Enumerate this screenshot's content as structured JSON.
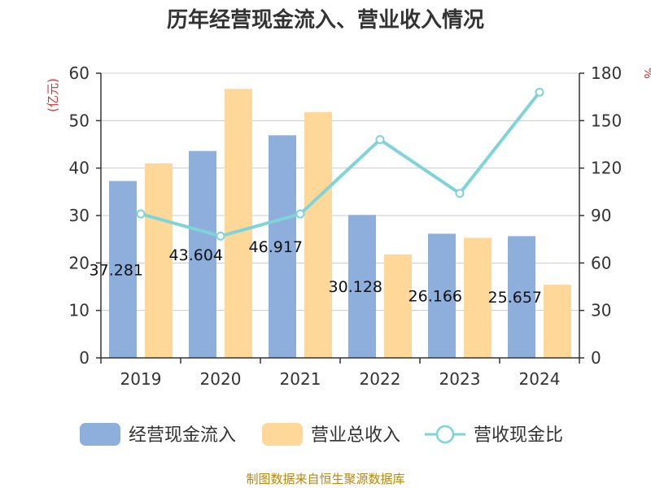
{
  "chart_data": {
    "type": "bar",
    "title": "历年经营现金流入、营业收入情况",
    "categories": [
      "2019",
      "2020",
      "2021",
      "2022",
      "2023",
      "2024"
    ],
    "series": [
      {
        "name": "经营现金流入",
        "type": "bar",
        "axis": "left",
        "color": "#8eaedb",
        "values": [
          37.281,
          43.604,
          46.917,
          30.128,
          26.166,
          25.657
        ],
        "labels": [
          "37.281",
          "43.604",
          "46.917",
          "30.128",
          "26.166",
          "25.657"
        ]
      },
      {
        "name": "营业总收入",
        "type": "bar",
        "axis": "left",
        "color": "#fdd898",
        "values": [
          41.0,
          56.7,
          51.8,
          21.8,
          25.3,
          15.4
        ]
      },
      {
        "name": "营收现金比",
        "type": "line",
        "axis": "right",
        "color": "#7fd4d8",
        "values": [
          91,
          77,
          91,
          138,
          104,
          168
        ]
      }
    ],
    "left_axis": {
      "unit": "(亿元)",
      "ticks": [
        "0",
        "10",
        "20",
        "30",
        "40",
        "50",
        "60"
      ],
      "range": [
        0,
        60
      ]
    },
    "right_axis": {
      "unit": "%",
      "ticks": [
        "0",
        "30",
        "60",
        "90",
        "120",
        "150",
        "180"
      ],
      "range": [
        0,
        180
      ]
    },
    "grid": true,
    "legend_position": "bottom"
  },
  "source": "制图数据来自恒生聚源数据库"
}
